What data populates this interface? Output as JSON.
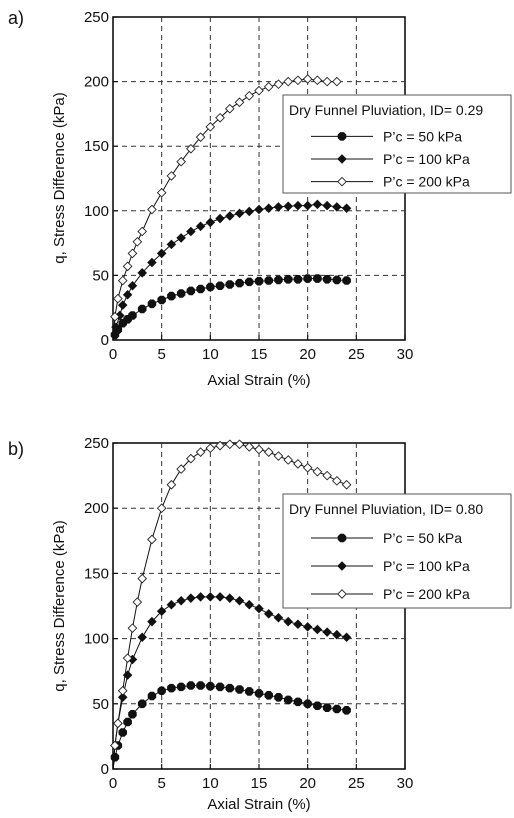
{
  "panels": [
    {
      "label": "a)",
      "chart_data": {
        "type": "line",
        "xlabel": "Axial Strain (%)",
        "ylabel": "q, Stress Difference (kPa)",
        "xlim": [
          0,
          30
        ],
        "ylim": [
          0,
          250
        ],
        "xticks": [
          "0",
          "5",
          "10",
          "15",
          "20",
          "25",
          "30"
        ],
        "yticks": [
          "0",
          "50",
          "100",
          "150",
          "200",
          "250"
        ],
        "grid": true,
        "legend_placement": "right",
        "legend_title": "Dry Funnel Pluviation, ID= 0.29",
        "series": [
          {
            "name": "P’c = 50 kPa",
            "marker": "filled-octagon",
            "x": [
              0,
              0.2,
              0.5,
              1,
              1.5,
              2,
              3,
              4,
              5,
              6,
              7,
              8,
              9,
              10,
              11,
              12,
              13,
              14,
              15,
              16,
              17,
              18,
              19,
              20,
              21,
              22,
              23,
              24
            ],
            "y": [
              0,
              4,
              8,
              13,
              16,
              19,
              24,
              28,
              31,
              34,
              36,
              38,
              39.5,
              41,
              42,
              43,
              44,
              45,
              45.5,
              46,
              46.5,
              47,
              47,
              47.5,
              47.5,
              47,
              46.5,
              46
            ]
          },
          {
            "name": "P’c = 100 kPa",
            "marker": "filled-diamond",
            "x": [
              0,
              0.3,
              0.7,
              1,
              1.5,
              2,
              3,
              4,
              5,
              6,
              7,
              8,
              9,
              10,
              11,
              12,
              13,
              14,
              15,
              16,
              17,
              18,
              19,
              20,
              21,
              22,
              23,
              24
            ],
            "y": [
              0,
              10,
              19,
              27,
              35,
              42,
              52,
              60,
              67,
              74,
              79,
              84,
              88,
              91,
              94,
              96,
              98,
              99.5,
              101,
              102,
              103,
              103.5,
              104,
              104,
              105,
              104,
              103,
              102
            ]
          },
          {
            "name": "P’c = 200 kPa",
            "marker": "open-diamond",
            "x": [
              0,
              0.2,
              0.5,
              1,
              1.5,
              2,
              2.5,
              3,
              4,
              5,
              6,
              7,
              8,
              9,
              10,
              11,
              12,
              13,
              14,
              15,
              16,
              17,
              18,
              19,
              20,
              21,
              22,
              23
            ],
            "y": [
              0,
              18,
              32,
              46,
              57,
              67,
              76,
              84,
              101,
              114,
              127,
              138,
              148,
              157,
              165,
              172,
              179,
              184,
              189,
              193,
              196,
              198,
              200,
              201,
              202,
              201,
              200,
              200
            ]
          }
        ]
      }
    },
    {
      "label": "b)",
      "chart_data": {
        "type": "line",
        "xlabel": "Axial Strain (%)",
        "ylabel": "q, Stress Difference (kPa)",
        "xlim": [
          0,
          30
        ],
        "ylim": [
          0,
          250
        ],
        "xticks": [
          "0",
          "5",
          "10",
          "15",
          "20",
          "25",
          "30"
        ],
        "yticks": [
          "0",
          "50",
          "100",
          "150",
          "200",
          "250"
        ],
        "grid": true,
        "legend_placement": "right",
        "legend_title": "Dry Funnel Pluviation, ID= 0.80",
        "series": [
          {
            "name": "P’c = 50 kPa",
            "marker": "filled-octagon",
            "x": [
              0,
              0.2,
              0.5,
              1,
              1.5,
              2,
              3,
              4,
              5,
              6,
              7,
              8,
              9,
              10,
              11,
              12,
              13,
              14,
              15,
              16,
              17,
              18,
              19,
              20,
              21,
              22,
              23,
              24
            ],
            "y": [
              0,
              9,
              18,
              28,
              36,
              42,
              50,
              56,
              60,
              62,
              63,
              64,
              64,
              63.5,
              63,
              62,
              61,
              59.5,
              58,
              56.5,
              55,
              53,
              51.5,
              50,
              48.5,
              47,
              46,
              45
            ]
          },
          {
            "name": "P’c = 100 kPa",
            "marker": "filled-diamond",
            "x": [
              0,
              0.2,
              0.5,
              1,
              1.5,
              2,
              3,
              4,
              5,
              6,
              7,
              8,
              9,
              10,
              11,
              12,
              13,
              14,
              15,
              16,
              17,
              18,
              19,
              20,
              21,
              22,
              23,
              24
            ],
            "y": [
              0,
              18,
              35,
              55,
              72,
              84,
              101,
              113,
              121,
              126,
              129,
              131,
              132,
              132,
              132,
              131,
              129,
              126,
              123,
              119,
              116,
              113,
              111,
              109,
              107,
              105,
              103,
              101
            ]
          },
          {
            "name": "P’c = 200 kPa",
            "marker": "open-diamond",
            "x": [
              0,
              0.2,
              0.5,
              1,
              1.5,
              2,
              2.5,
              3,
              4,
              5,
              6,
              7,
              8,
              9,
              10,
              11,
              12,
              13,
              14,
              15,
              16,
              17,
              18,
              19,
              20,
              21,
              22,
              23,
              24
            ],
            "y": [
              0,
              18,
              35,
              60,
              85,
              108,
              128,
              146,
              176,
              200,
              218,
              230,
              238,
              243,
              246,
              248,
              249,
              249,
              247,
              245,
              243,
              240,
              237,
              234,
              231,
              228,
              225,
              221,
              218
            ]
          }
        ]
      }
    }
  ]
}
